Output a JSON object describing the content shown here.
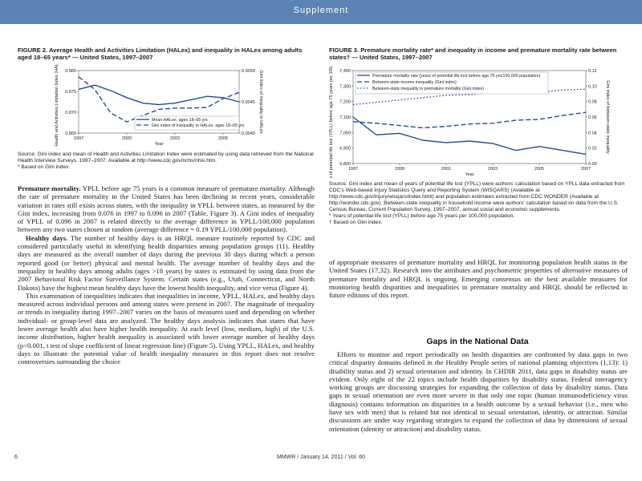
{
  "header": {
    "banner": "Supplement"
  },
  "figure2": {
    "caption": "FIGURE 2. Average Health and Activities Limitation (HALex) and inequality in HALex among adults aged 18–65 years* — United States, 1997–2007",
    "notes": [
      "Source: Gini index and mean of Health and Activities Limitation Index were estimated by using data retrieved from the National Health Interview Surveys, 1997–2007. Available at http://www.cdc.gov/nchs/nhis.htm.",
      "* Based on Gini index."
    ]
  },
  "figure3": {
    "caption": "FIGURE 3. Premature mortality rate* and inequality in income and premature mortality rate between states† — United States, 1997–2007",
    "notes": [
      "Source: Gini index and mean of years of potential life lost (YPLL) were authors' calculation based on YPLL data extracted from CDC's Web-based Injury Statistics Query and Reporting System (WISQARS) (Available at http://www.cdc.gov/injury/wisqars/index.html) and population estimates extracted from CDC WONDER (Available at http://wonder.cdc.gov). Between-state inequality in household income were authors' calculation based on data from the U.S. Census Bureau, Current Population Survey, 1997–2007, annual social and economic supplements.",
      "* Years of potential life lost (YPLL) before age 75 years per 100,000 population.",
      "† Based on Gini index."
    ]
  },
  "chart_data": [
    {
      "type": "line",
      "title": "FIGURE 2. Average Health and Activities Limitation (HALex) and inequality in HALex among adults aged 18–65 years* — United States, 1997–2007",
      "xlabel": "Year",
      "ylabel": "Health and Activities Limitation Index (HALex)",
      "y2label": "Gini index of inequality in HALex",
      "x": [
        1997,
        1998,
        1999,
        2000,
        2001,
        2002,
        2003,
        2004,
        2005,
        2006,
        2007
      ],
      "xticks": [
        "1997",
        "2000",
        "2003",
        "2006"
      ],
      "ylim": [
        0.865,
        0.88
      ],
      "yticks": [
        "0.865",
        "0.870",
        "0.875",
        "0.880"
      ],
      "y2lim": [
        0.004,
        0.005
      ],
      "y2ticks": [
        "0.0040",
        "0.0045",
        "0.0050"
      ],
      "series": [
        {
          "name": "Mean HALex, ages 18–65 yrs",
          "axis": "left",
          "style": "solid",
          "values": [
            0.8755,
            0.8765,
            0.8752,
            0.8735,
            0.8722,
            0.8718,
            0.8722,
            0.873,
            0.8738,
            0.8735,
            0.8725
          ]
        },
        {
          "name": "Gini index of inequality in HALex, ages 18–65 yrs",
          "axis": "right",
          "style": "dashed",
          "values": [
            0.0049,
            0.0047,
            0.00432,
            0.00418,
            0.00428,
            0.00438,
            0.0044,
            0.0044,
            0.00441,
            0.00455,
            0.00465
          ]
        }
      ],
      "legend": "bottom-right"
    },
    {
      "type": "line",
      "title": "FIGURE 3. Premature mortality rate* and inequality in income and premature mortality rate between states† — United States, 1997–2007",
      "xlabel": "Year",
      "ylabel": "Total years of potential life lost (YPLL) before age 75 years per 100,000 population",
      "y2label": "Gini index of between-state inequality",
      "x": [
        1997,
        1998,
        1999,
        2000,
        2001,
        2002,
        2003,
        2004,
        2005,
        2006,
        2007
      ],
      "xticks": [
        "1997",
        "1999",
        "2001",
        "2003",
        "2005",
        "2007"
      ],
      "ylim": [
        6800,
        7400
      ],
      "yticks": [
        "6,800",
        "6,900",
        "7,000",
        "7,100",
        "7,200",
        "7,300",
        "7,400"
      ],
      "y2lim": [
        0.0,
        0.12
      ],
      "y2ticks": [
        "0.00",
        "0.02",
        "0.04",
        "0.06",
        "0.08",
        "0.10",
        "0.12"
      ],
      "series": [
        {
          "name": "Premature mortality rate (years of potential life lost before age 75 yrs/100,000 population)",
          "axis": "left",
          "style": "solid",
          "values": [
            7100,
            6985,
            6995,
            6950,
            6935,
            6945,
            6930,
            6885,
            6910,
            6885,
            6860
          ]
        },
        {
          "name": "Between-state income inequality (Gini index)",
          "axis": "right",
          "style": "dashed",
          "values": [
            0.054,
            0.052,
            0.049,
            0.046,
            0.048,
            0.051,
            0.052,
            0.056,
            0.057,
            0.062,
            0.066
          ]
        },
        {
          "name": "Between-state inequality in premature mortality (Gini index)",
          "axis": "right",
          "style": "dotted",
          "values": [
            0.076,
            0.079,
            0.082,
            0.085,
            0.088,
            0.089,
            0.092,
            0.093,
            0.092,
            0.095,
            0.096
          ]
        }
      ],
      "legend": "top-left"
    }
  ],
  "body": {
    "left": [
      {
        "runin": "Premature mortality.",
        "text": " YPLL before age 75 years is a common measure of premature mortality. Although the rate of premature mortality in the United States has been declining in recent years, considerable variation in rates still exists across states, with the inequality in YPLL between states, as measured by the Gini index, increasing from 0.076 in 1997 to 0.096 in 2007 (Table, Figure 3). A Gini index of inequality of YPLL of 0.096 in 2007 is related directly to the average difference in YPLL/100,000 population between any two states chosen at random (average difference = 0.19 YPLL/100,000 population)."
      },
      {
        "runin": "Healthy days.",
        "text": " The number of healthy days is an HRQL measure routinely reported by CDC and considered particularly useful in identifying health disparities among population groups (11). Healthy days are measured as the overall number of days during the previous 30 days during which a person reported good (or better) physical and mental health. The average number of healthy days and the inequality in healthy days among adults (ages >18 years) by states is estimated by using data from the 2007 Behavioral Risk Factor Surveillance System. Certain states (e.g., Utah, Connecticut, and North Dakota) have the highest mean healthy days have the lowest health inequality, and vice versa (Figure 4)."
      },
      {
        "runin": "",
        "text": "This examination of inequalities indicates that inequalities in income, YPLL, HALex, and healthy days measured across individual persons and among states were present in 2007. The magnitude of inequality or trends in inequality during 1997–2007 varies on the basis of measures used and depending on whether individual- or group-level data are analyzed. The healthy days analysis indicates that states that have lower average health also have higher health inequality. At each level (low, medium, high) of the U.S. income distribution, higher health inequality is associated with lower average number of healthy days (p<0.001, t test of slope coefficient of linear regression line) (Figure 5). Using YPLL, HALex, and healthy days to illustrate the potential value of health inequality measures in this report does not resolve controversies surrounding the choice"
      }
    ],
    "right_top": "of appropriate measures of premature mortality and HRQL for monitoring population health status in the United States (17,32). Research into the attributes and psychometric properties of alternative measures of premature mortality and HRQL is ongoing. Emerging consensus on the best available measures for monitoring health disparities and inequalities in premature mortality and HRQL should be reflected in future editions of this report.",
    "section_heading": "Gaps in the National Data",
    "right_bottom": "Efforts to monitor and report periodically on health disparities are confronted by data gaps in two critical disparity domains defined in the Healthy People series of national planning objectives (1,13): 1) disability status and 2) sexual orientation and identity. In CHDIR 2011, data gaps in disability status are evident. Only eight of the 22 topics include health disparities by disability status. Federal interagency working groups are discussing strategies for expanding the collection of data by disability status. Data gaps in sexual orientation are even more severe in that only one topic (human immunodeficiency virus diagnosis) contains information on disparities in a health outcome by a sexual behavior (i.e., men who have sex with men) that is related but not identical to sexual orientation, identity, or attraction. Similar discussions are under way regarding strategies to expand the collection of data by dimensions of sexual orientation (identity or attraction) and disability status."
  },
  "footer": {
    "page": "6",
    "journal": "MMWR / January 14, 2011 / Vol. 60"
  }
}
